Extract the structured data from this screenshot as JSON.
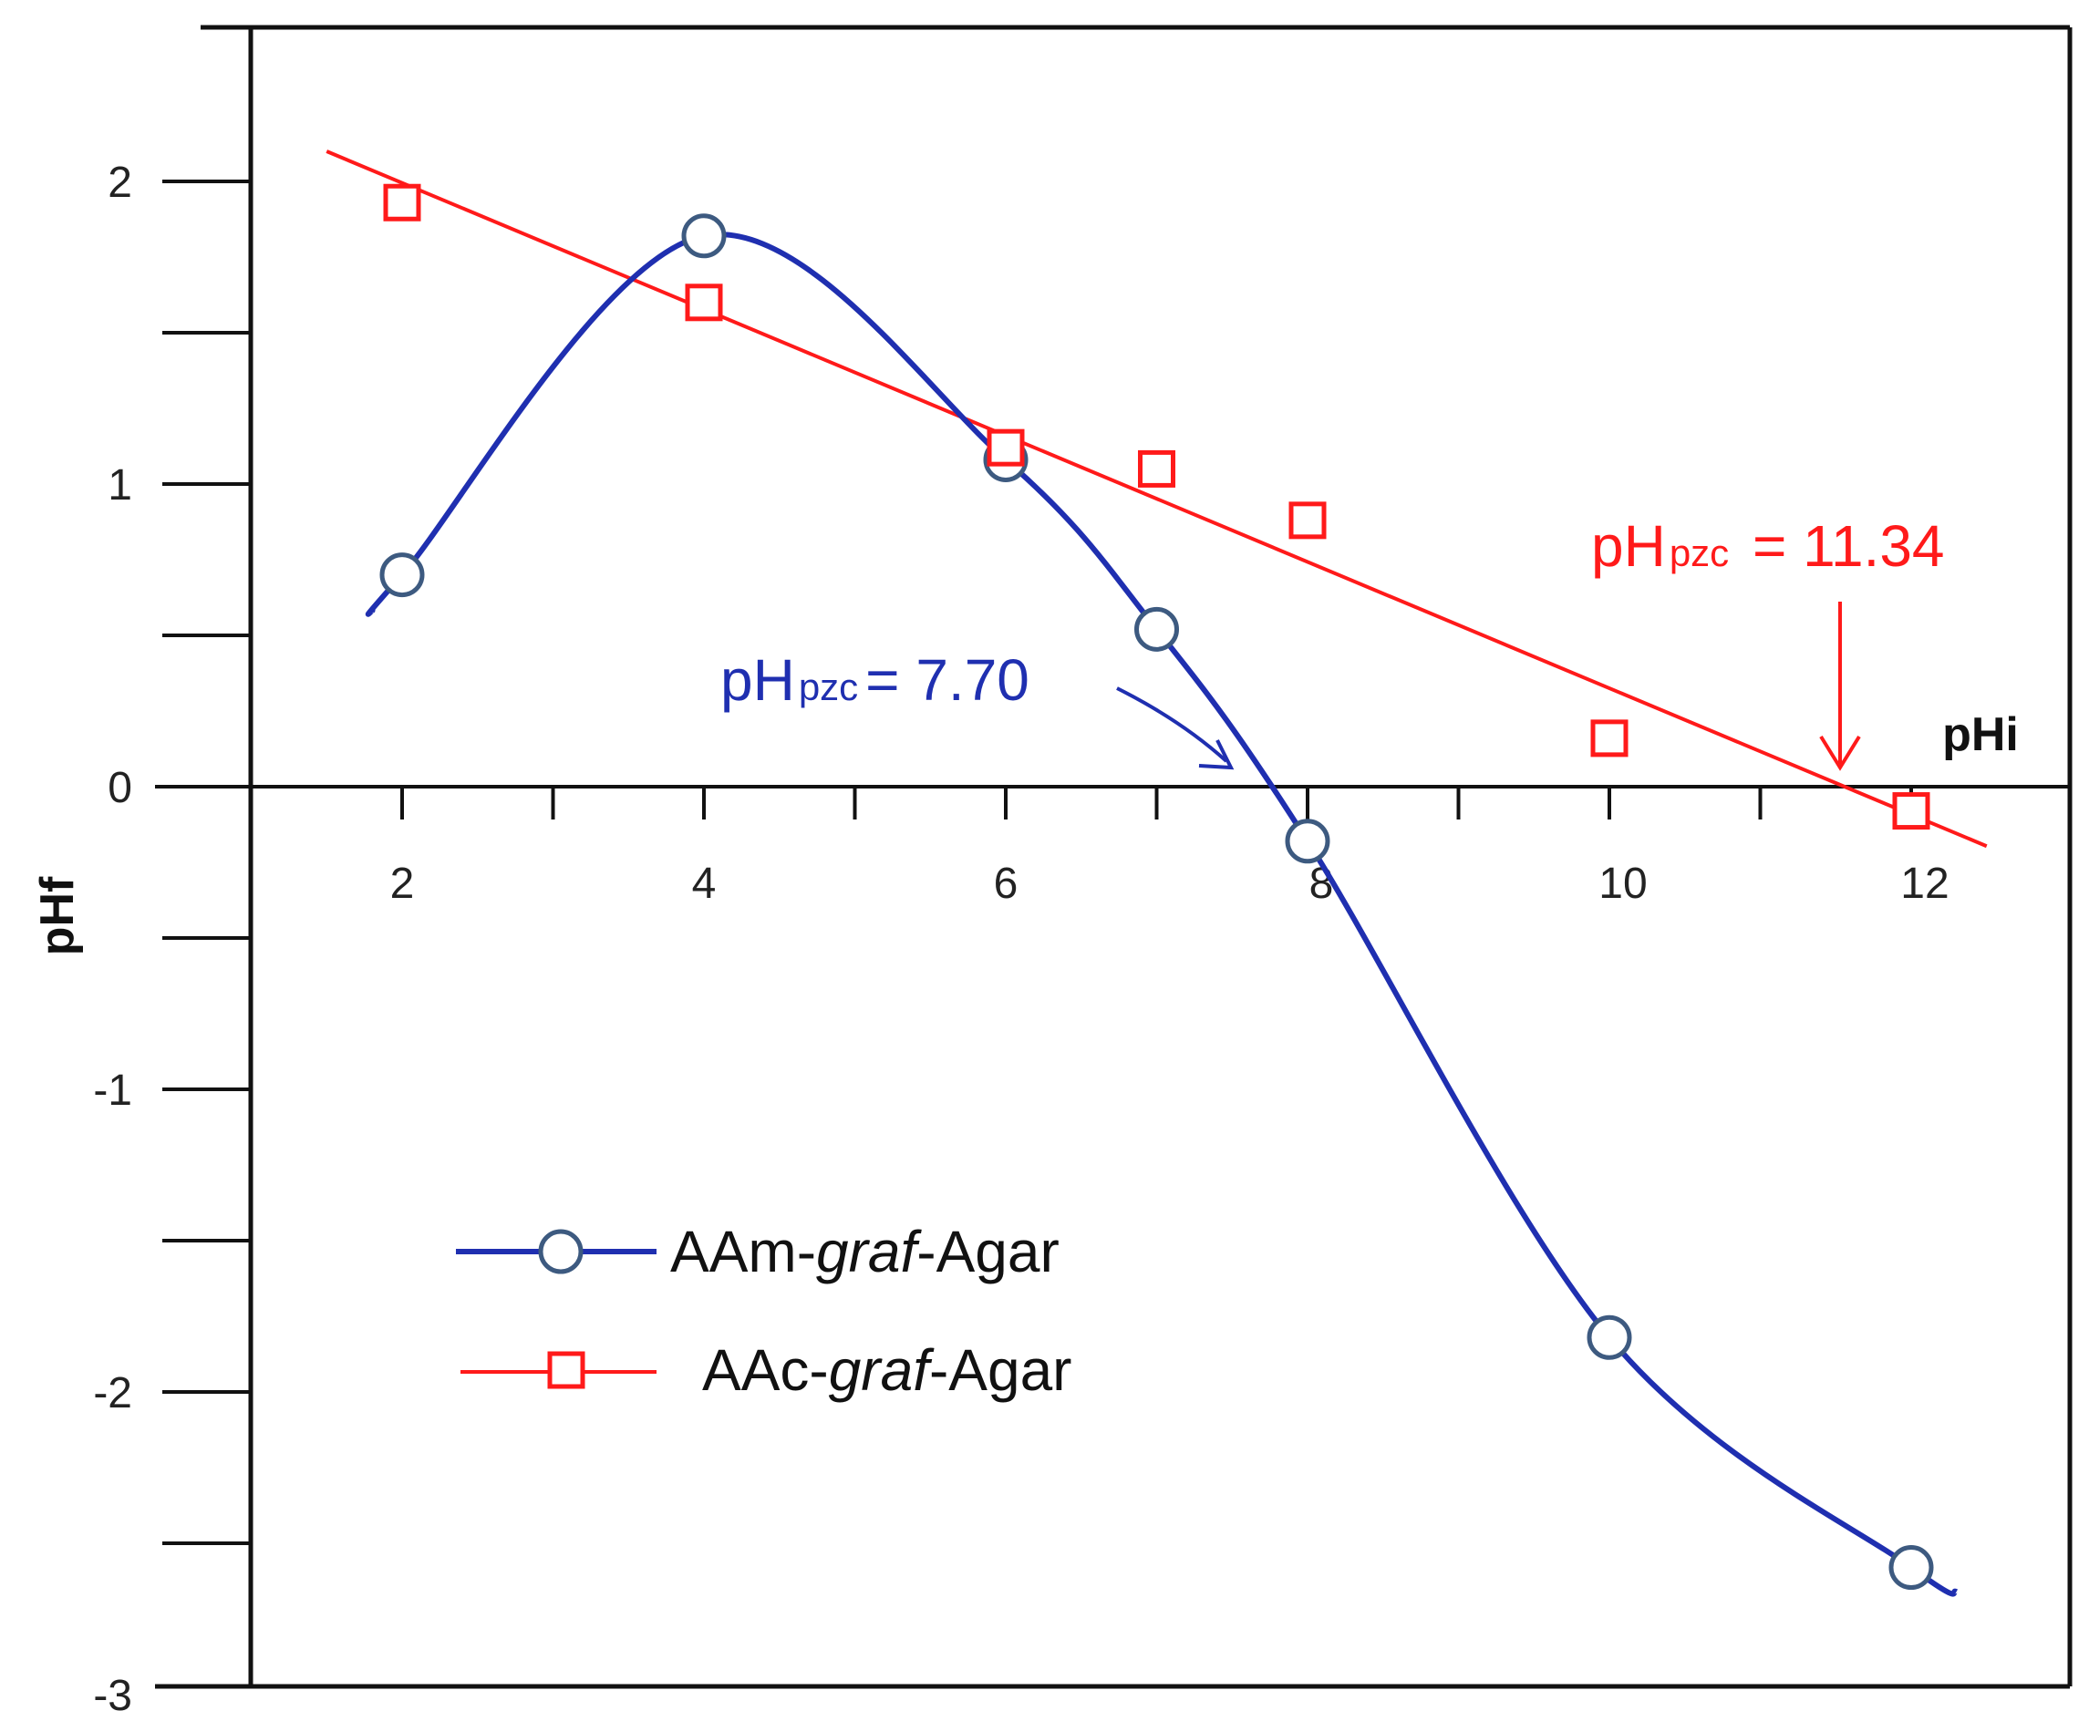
{
  "chart_data": {
    "type": "line",
    "xlabel": "pHi",
    "ylabel": "pHf",
    "xlim": [
      0,
      12.8
    ],
    "ylim": [
      -3,
      2.5
    ],
    "x_ticks": [
      2,
      4,
      6,
      8,
      10,
      12
    ],
    "y_ticks": [
      2,
      1,
      0,
      -1,
      -2,
      -3
    ],
    "grid": false,
    "legend_position": "lower-left",
    "series": [
      {
        "name_prefix": "AAm-",
        "name_italic": "graf",
        "name_suffix": "-Agar",
        "marker": "circle",
        "color": "#1f2fb0",
        "marker_edge": "#3d5a80",
        "x": [
          2,
          4,
          6,
          7,
          8,
          10,
          12
        ],
        "y": [
          0.7,
          1.82,
          1.08,
          0.52,
          -0.18,
          -1.82,
          -2.58
        ]
      },
      {
        "name_prefix": "AAc-",
        "name_italic": "graf",
        "name_suffix": "-Agar",
        "marker": "square",
        "color": "#ff1a1a",
        "x": [
          2,
          4,
          6,
          7,
          8,
          10,
          12
        ],
        "y": [
          1.93,
          1.6,
          1.12,
          1.05,
          0.88,
          0.16,
          -0.08
        ]
      }
    ],
    "annotations": [
      {
        "main": "pH",
        "sub": "pzc",
        "value": "= 7.70",
        "color": "#1f2fb0"
      },
      {
        "main": "pH",
        "sub": "pzc",
        "value": " = 11.34",
        "color": "#ff1a1a"
      }
    ]
  }
}
